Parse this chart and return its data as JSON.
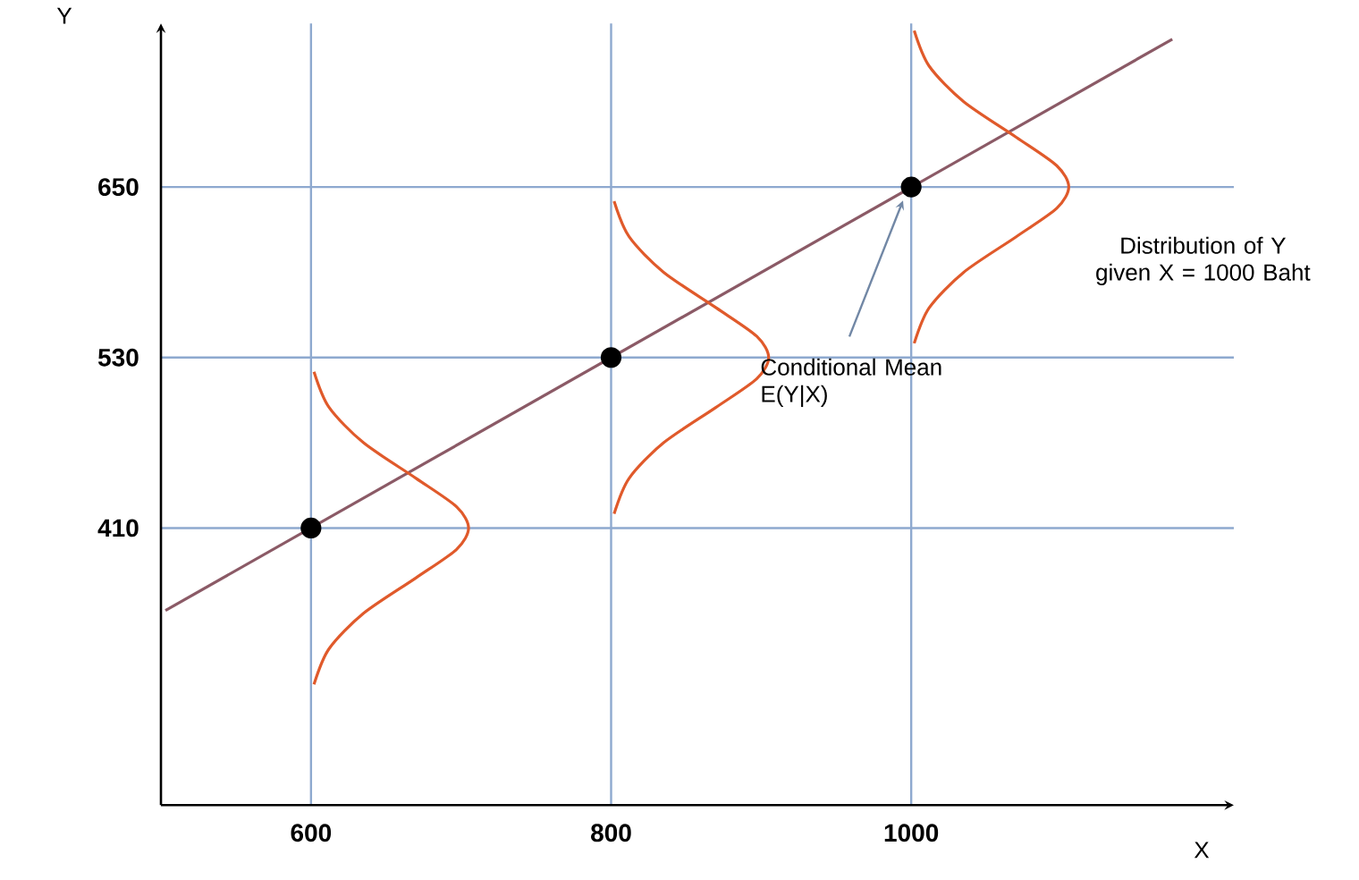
{
  "chart_data": {
    "type": "scatter",
    "xlabel": "X",
    "ylabel": "Y",
    "xlim": [
      500,
      1215
    ],
    "ylim": [
      215,
      765
    ],
    "xticks": [
      600,
      800,
      1000
    ],
    "yticks": [
      410,
      530,
      650
    ],
    "grid": true,
    "series": [
      {
        "type": "line",
        "x": [
          503,
          1174
        ],
        "values": [
          352,
          754
        ],
        "color": "#8b5a66",
        "marker": "none"
      },
      {
        "type": "line",
        "x": [
          602,
          612,
          635,
          670,
          697,
          705,
          697,
          670,
          635,
          612,
          602
        ],
        "values": [
          300,
          325,
          350,
          375,
          395,
          410,
          425,
          445,
          470,
          495,
          520
        ],
        "color": "#e05a2b",
        "marker": "none"
      },
      {
        "type": "line",
        "x": [
          802,
          812,
          835,
          870,
          897,
          905,
          897,
          870,
          835,
          812,
          802
        ],
        "values": [
          420,
          445,
          470,
          495,
          515,
          530,
          545,
          565,
          590,
          615,
          640
        ],
        "color": "#e05a2b",
        "marker": "none"
      },
      {
        "type": "line",
        "x": [
          1002,
          1012,
          1035,
          1070,
          1097,
          1105,
          1097,
          1070,
          1035,
          1012,
          1002
        ],
        "values": [
          540,
          565,
          590,
          615,
          635,
          650,
          665,
          685,
          710,
          735,
          760
        ],
        "color": "#e05a2b",
        "marker": "none"
      },
      {
        "x": [
          600,
          800,
          1000
        ],
        "values": [
          410,
          530,
          650
        ],
        "color": "#000000",
        "marker": "circle"
      }
    ],
    "annotations": [
      "Conditional Mean E(Y|X)",
      "Distribution of Y given X = 1000 Baht"
    ]
  }
}
